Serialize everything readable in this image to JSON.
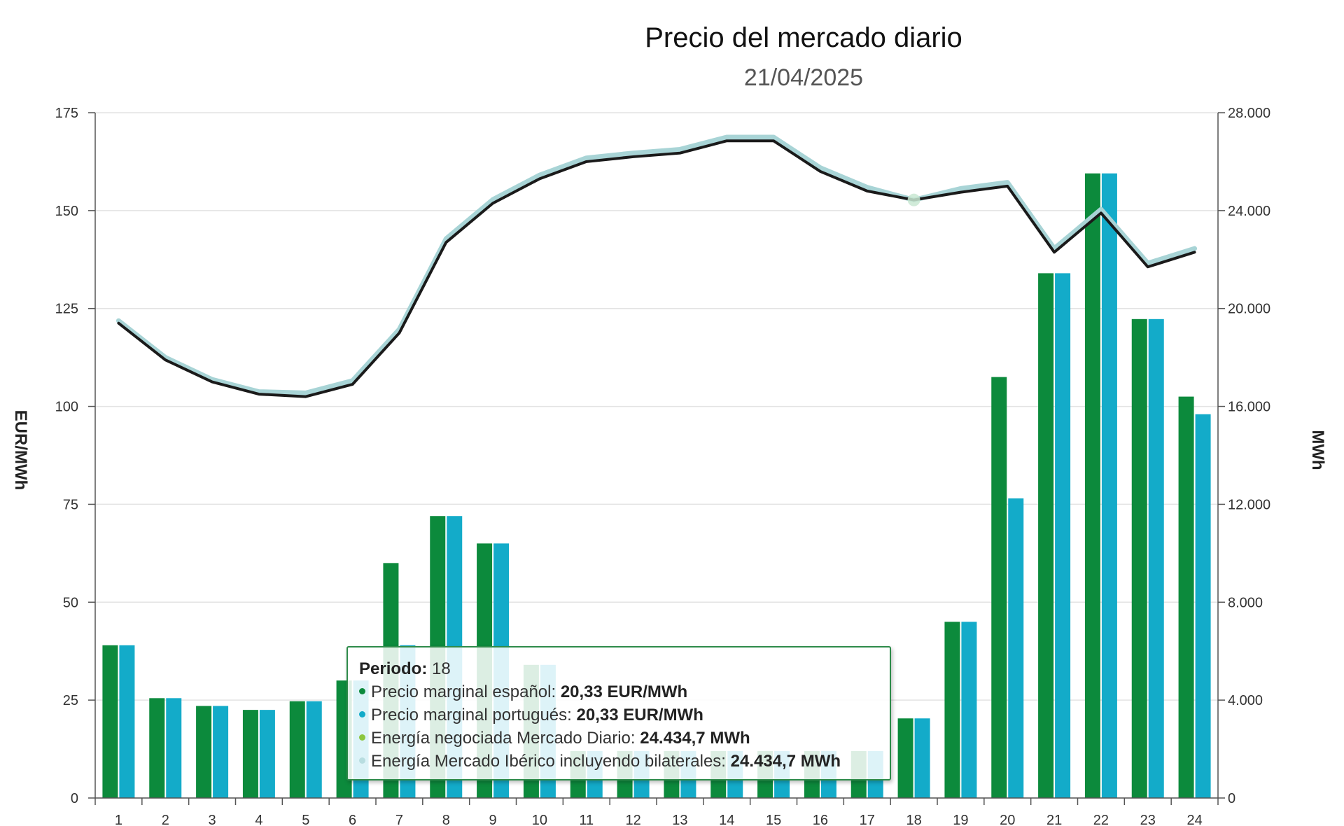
{
  "chart_data": {
    "type": "bar",
    "title": "Precio del mercado diario",
    "subtitle": "21/04/2025",
    "categories": [
      "1",
      "2",
      "3",
      "4",
      "5",
      "6",
      "7",
      "8",
      "9",
      "10",
      "11",
      "12",
      "13",
      "14",
      "15",
      "16",
      "17",
      "18",
      "19",
      "20",
      "21",
      "22",
      "23",
      "24"
    ],
    "y_left": {
      "label": "EUR/MWh",
      "range": [
        0,
        175
      ],
      "ticks": [
        0,
        25,
        50,
        75,
        100,
        125,
        150,
        175
      ],
      "tick_labels": [
        "0",
        "25",
        "50",
        "75",
        "100",
        "125",
        "150",
        "175"
      ]
    },
    "y_right": {
      "label": "MWh",
      "range": [
        0,
        28000
      ],
      "ticks": [
        0,
        4000,
        8000,
        12000,
        16000,
        20000,
        24000,
        28000
      ],
      "tick_labels": [
        "0",
        "4.000",
        "8.000",
        "12.000",
        "16.000",
        "20.000",
        "24.000",
        "28.000"
      ]
    },
    "grid": true,
    "series": [
      {
        "name": "Precio marginal español",
        "kind": "bar",
        "axis": "left",
        "color": "#0c8a3c",
        "values": [
          39,
          25.5,
          23.5,
          22.5,
          24.7,
          30,
          60,
          72,
          65,
          34,
          12,
          12,
          12,
          12,
          12,
          12,
          12,
          20.33,
          45,
          107.5,
          134,
          159.5,
          122.3,
          102.5
        ]
      },
      {
        "name": "Precio marginal portugués",
        "kind": "bar",
        "axis": "left",
        "color": "#13abc9",
        "values": [
          39,
          25.5,
          23.5,
          22.5,
          24.7,
          30,
          39,
          72,
          65,
          34,
          12,
          12,
          12,
          12,
          12,
          12,
          12,
          20.33,
          45,
          76.5,
          134,
          159.5,
          122.3,
          98
        ]
      },
      {
        "name": "Energía negociada Mercado Diario",
        "kind": "line",
        "axis": "right",
        "color": "#1a1a1a",
        "values": [
          19400,
          17900,
          17000,
          16500,
          16400,
          16900,
          19000,
          22700,
          24300,
          25300,
          26000,
          26200,
          26350,
          26850,
          26850,
          25600,
          24800,
          24434.7,
          24750,
          25000,
          22300,
          23900,
          21700,
          22300
        ]
      },
      {
        "name": "Energía Mercado Ibérico incluyendo bilaterales",
        "kind": "line",
        "axis": "right",
        "color": "#a8d4d6",
        "values": [
          19500,
          18000,
          17100,
          16600,
          16550,
          17050,
          19150,
          22850,
          24450,
          25450,
          26150,
          26350,
          26500,
          27000,
          27000,
          25750,
          24950,
          24434.7,
          24900,
          25150,
          22450,
          24050,
          21850,
          22450
        ]
      }
    ],
    "tooltip": {
      "period_label": "Periodo:",
      "period_value": "18",
      "items": [
        {
          "label": "Precio marginal español:",
          "value": "20,33 EUR/MWh",
          "color": "#0c8a3c"
        },
        {
          "label": "Precio marginal portugués:",
          "value": "20,33 EUR/MWh",
          "color": "#13abc9"
        },
        {
          "label": "Energía negociada Mercado Diario:",
          "value": "24.434,7 MWh",
          "color": "#8cc63f"
        },
        {
          "label": "Energía Mercado Ibérico incluyendo bilaterales:",
          "value": "24.434,7 MWh",
          "color": "#b8dde0"
        }
      ]
    }
  }
}
